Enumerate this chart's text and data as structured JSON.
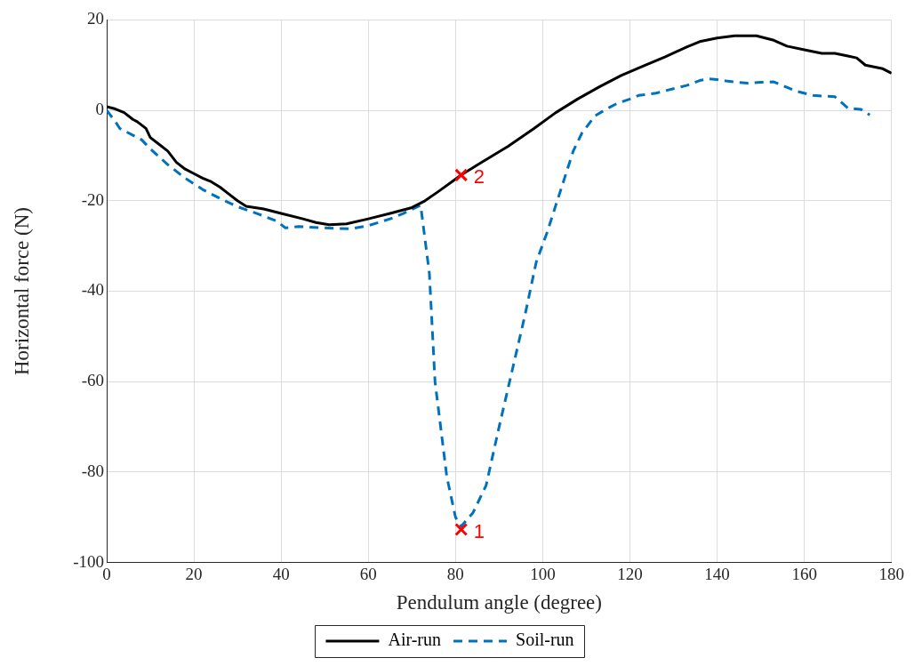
{
  "chart_data": {
    "type": "line",
    "xlabel": "Pendulum angle (degree)",
    "ylabel": "Horizontal force (N)",
    "xlim": [
      0,
      180
    ],
    "xticks": [
      0,
      20,
      40,
      60,
      80,
      100,
      120,
      140,
      160,
      180
    ],
    "ylim": [
      -100,
      20
    ],
    "yticks": [
      -100,
      -80,
      -60,
      -40,
      -20,
      0,
      20
    ],
    "grid": true,
    "legend": "bottom",
    "marker": "none",
    "series": [
      {
        "name": "Air-run",
        "color": "#000000",
        "line_style": "solid",
        "x": [
          0,
          2,
          4,
          6,
          7,
          9,
          10,
          12,
          14,
          16,
          18,
          20,
          22,
          24,
          26,
          28,
          30,
          32,
          36,
          40,
          45,
          48,
          51,
          55,
          60,
          65,
          70,
          73,
          76,
          81.3,
          86,
          92,
          98,
          103,
          108,
          113,
          118,
          123,
          128,
          133,
          136,
          140,
          144,
          149,
          153,
          156,
          160,
          164,
          167,
          170,
          172,
          174,
          176,
          178,
          180
        ],
        "values": [
          0.8,
          0.3,
          -0.5,
          -2,
          -2.5,
          -4,
          -6,
          -7.5,
          -9,
          -11.5,
          -13,
          -14,
          -15,
          -15.8,
          -17,
          -18.5,
          -20,
          -21.2,
          -21.8,
          -22.8,
          -24,
          -24.8,
          -25.3,
          -25.1,
          -24,
          -22.8,
          -21.5,
          -20,
          -18,
          -14.3,
          -11.5,
          -8,
          -4,
          -0.5,
          2.5,
          5.2,
          7.7,
          9.8,
          11.8,
          14,
          15.2,
          16,
          16.5,
          16.5,
          15.5,
          14.2,
          13.4,
          12.6,
          12.6,
          12,
          11.6,
          10,
          9.6,
          9.2,
          8.2
        ]
      },
      {
        "name": "Soil-run",
        "color": "#0072bd",
        "line_style": "dashed",
        "x": [
          0,
          2,
          3,
          5,
          7,
          8,
          10,
          14,
          18,
          22,
          26,
          30,
          35,
          39,
          41,
          44,
          50,
          56,
          60,
          65,
          68,
          72,
          74,
          75.3,
          78,
          80,
          81.3,
          84,
          87,
          90,
          93,
          96,
          98.5,
          101,
          103,
          105,
          107,
          109,
          112,
          115,
          117,
          120,
          122,
          126,
          130,
          133,
          136,
          138,
          140,
          142,
          147,
          150,
          153,
          158,
          162,
          167,
          170,
          173,
          175
        ],
        "values": [
          0,
          -2.5,
          -4,
          -5,
          -6,
          -6.5,
          -8.5,
          -12,
          -15,
          -17.5,
          -19.5,
          -21.3,
          -23,
          -24.5,
          -26,
          -25.7,
          -26,
          -26.2,
          -25.5,
          -24,
          -22.8,
          -21,
          -36,
          -60,
          -81,
          -90,
          -92,
          -89,
          -83,
          -70,
          -57.5,
          -45,
          -33.6,
          -27,
          -21,
          -15,
          -9,
          -5,
          -1.2,
          0.5,
          1.5,
          2.5,
          3.3,
          3.8,
          4.8,
          5.5,
          6.6,
          7,
          6.8,
          6.5,
          6,
          6.2,
          6.3,
          4.3,
          3.3,
          3,
          0.5,
          0.2,
          -1
        ]
      }
    ],
    "annotations": [
      {
        "text": "1",
        "x": 81.3,
        "y": -92.7
      },
      {
        "text": "2",
        "x": 81.3,
        "y": -14.3
      }
    ]
  }
}
